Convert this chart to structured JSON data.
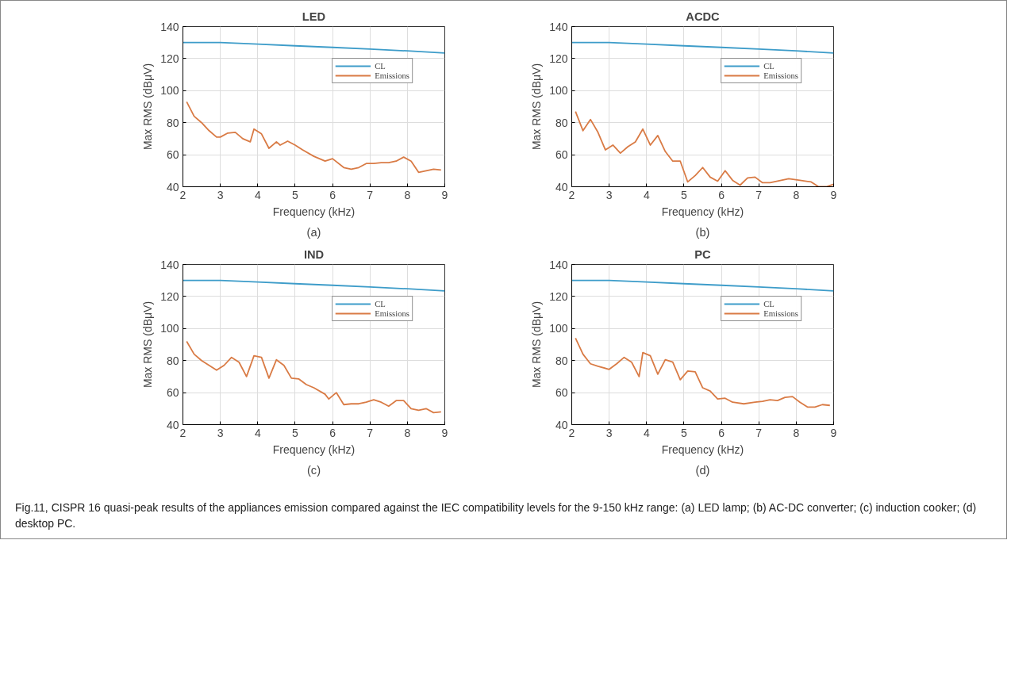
{
  "chart_data": [
    {
      "type": "line",
      "title": "LED",
      "xlabel": "Frequency (kHz)",
      "ylabel": "Max RMS (dBμV)",
      "xlim": [
        2,
        9
      ],
      "ylim": [
        40,
        140
      ],
      "xticks": [
        2,
        3,
        4,
        5,
        6,
        7,
        8,
        9
      ],
      "yticks": [
        40,
        60,
        80,
        100,
        120,
        140
      ],
      "grid": true,
      "legend": "top right",
      "annotations": [
        "(a)"
      ],
      "series": [
        {
          "name": "CL",
          "color": "#3d9cc9",
          "x": [
            2,
            3,
            4,
            5,
            6,
            7,
            8,
            9
          ],
          "values": [
            130,
            130,
            129,
            128,
            127,
            126,
            124.8,
            123.5
          ]
        },
        {
          "name": "Emissions",
          "color": "#d97b45",
          "x": [
            2.1,
            2.3,
            2.5,
            2.7,
            2.9,
            3.0,
            3.2,
            3.4,
            3.6,
            3.8,
            3.9,
            4.1,
            4.3,
            4.5,
            4.6,
            4.8,
            5.0,
            5.2,
            5.5,
            5.8,
            6.0,
            6.3,
            6.5,
            6.7,
            6.9,
            7.1,
            7.3,
            7.5,
            7.7,
            7.9,
            8.1,
            8.3,
            8.5,
            8.7,
            8.9
          ],
          "values": [
            93,
            84,
            80,
            75,
            71,
            71,
            73.5,
            74,
            70,
            68,
            76,
            73,
            64,
            68,
            66,
            68.5,
            66,
            63,
            59,
            56,
            57.5,
            52,
            51,
            52,
            54.5,
            54.5,
            55,
            55,
            56,
            58.5,
            56,
            49,
            50,
            51,
            50.5
          ]
        }
      ]
    },
    {
      "type": "line",
      "title": "ACDC",
      "xlabel": "Frequency (kHz)",
      "ylabel": "Max RMS (dBμV)",
      "xlim": [
        2,
        9
      ],
      "ylim": [
        40,
        140
      ],
      "xticks": [
        2,
        3,
        4,
        5,
        6,
        7,
        8,
        9
      ],
      "yticks": [
        40,
        60,
        80,
        100,
        120,
        140
      ],
      "grid": true,
      "legend": "top right",
      "annotations": [
        "(b)"
      ],
      "series": [
        {
          "name": "CL",
          "color": "#3d9cc9",
          "x": [
            2,
            3,
            4,
            5,
            6,
            7,
            8,
            9
          ],
          "values": [
            130,
            130,
            129,
            128,
            127,
            126,
            124.8,
            123.5
          ]
        },
        {
          "name": "Emissions",
          "color": "#d97b45",
          "x": [
            2.1,
            2.3,
            2.5,
            2.7,
            2.9,
            3.1,
            3.3,
            3.5,
            3.7,
            3.9,
            4.1,
            4.3,
            4.5,
            4.7,
            4.9,
            5.1,
            5.3,
            5.5,
            5.7,
            5.9,
            6.1,
            6.3,
            6.5,
            6.7,
            6.9,
            7.1,
            7.3,
            7.5,
            7.8,
            8.1,
            8.4,
            8.6,
            8.8,
            9.0
          ],
          "values": [
            87,
            75,
            82,
            74,
            63,
            66,
            61,
            65,
            68,
            76,
            66,
            72,
            62,
            56,
            56,
            43,
            47,
            52,
            46,
            43.5,
            50,
            44,
            41,
            45.5,
            46,
            42.5,
            42.5,
            43.5,
            45,
            44,
            43,
            40,
            40,
            41.5
          ]
        }
      ]
    },
    {
      "type": "line",
      "title": "IND",
      "xlabel": "Frequency (kHz)",
      "ylabel": "Max RMS (dBμV)",
      "xlim": [
        2,
        9
      ],
      "ylim": [
        40,
        140
      ],
      "xticks": [
        2,
        3,
        4,
        5,
        6,
        7,
        8,
        9
      ],
      "yticks": [
        40,
        60,
        80,
        100,
        120,
        140
      ],
      "grid": true,
      "legend": "top right",
      "annotations": [
        "(c)"
      ],
      "series": [
        {
          "name": "CL",
          "color": "#3d9cc9",
          "x": [
            2,
            3,
            4,
            5,
            6,
            7,
            8,
            9
          ],
          "values": [
            130,
            130,
            129,
            128,
            127,
            126,
            124.8,
            123.5
          ]
        },
        {
          "name": "Emissions",
          "color": "#d97b45",
          "x": [
            2.1,
            2.3,
            2.5,
            2.7,
            2.9,
            3.1,
            3.3,
            3.5,
            3.7,
            3.9,
            4.1,
            4.3,
            4.5,
            4.7,
            4.9,
            5.1,
            5.3,
            5.5,
            5.8,
            5.9,
            6.1,
            6.3,
            6.5,
            6.7,
            6.9,
            7.1,
            7.3,
            7.5,
            7.7,
            7.9,
            8.1,
            8.3,
            8.5,
            8.7,
            8.9
          ],
          "values": [
            92,
            84,
            80,
            77,
            74,
            77,
            82,
            79,
            70,
            83,
            82,
            69,
            80.5,
            77,
            69,
            68.5,
            65,
            63,
            59,
            56,
            60,
            52.5,
            53,
            53,
            54,
            55.5,
            54,
            51.5,
            55,
            55,
            50,
            49,
            50,
            47.5,
            48
          ]
        }
      ]
    },
    {
      "type": "line",
      "title": "PC",
      "xlabel": "Frequency (kHz)",
      "ylabel": "Max RMS (dBμV)",
      "xlim": [
        2,
        9
      ],
      "ylim": [
        40,
        140
      ],
      "xticks": [
        2,
        3,
        4,
        5,
        6,
        7,
        8,
        9
      ],
      "yticks": [
        40,
        60,
        80,
        100,
        120,
        140
      ],
      "grid": true,
      "legend": "top right",
      "annotations": [
        "(d)",
        "Fig.11, CISPR 16 quasi-peak results of the appliances emission compared against the IEC compatibility levels for the 9-150 kHz range: (a) LED lamp; (b) AC-DC converter; (c) induction cooker; (d) desktop PC."
      ],
      "series": [
        {
          "name": "CL",
          "color": "#3d9cc9",
          "x": [
            2,
            3,
            4,
            5,
            6,
            7,
            8,
            9
          ],
          "values": [
            130,
            130,
            129,
            128,
            127,
            126,
            124.8,
            123.5
          ]
        },
        {
          "name": "Emissions",
          "color": "#d97b45",
          "x": [
            2.1,
            2.3,
            2.5,
            2.7,
            3.0,
            3.2,
            3.4,
            3.6,
            3.8,
            3.9,
            4.1,
            4.3,
            4.5,
            4.7,
            4.9,
            5.1,
            5.3,
            5.5,
            5.7,
            5.9,
            6.1,
            6.3,
            6.6,
            6.9,
            7.1,
            7.3,
            7.5,
            7.7,
            7.9,
            8.1,
            8.3,
            8.5,
            8.7,
            8.9
          ],
          "values": [
            94,
            84,
            78,
            76.5,
            74.5,
            78,
            82,
            79,
            70,
            85,
            83,
            71.5,
            80.5,
            79,
            68,
            73.5,
            73,
            63,
            61,
            56,
            56.5,
            54,
            53,
            54,
            54.5,
            55.5,
            55,
            57,
            57.5,
            54,
            51,
            51,
            52.5,
            52
          ]
        }
      ]
    }
  ]
}
